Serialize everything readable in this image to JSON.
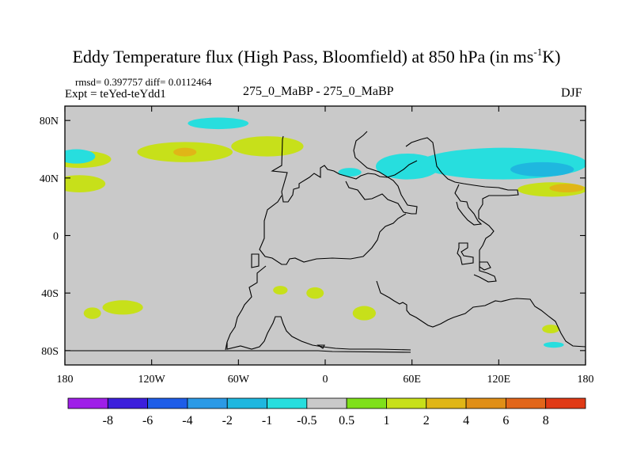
{
  "header": {
    "title_main": "Eddy Temperature flux (High Pass, Bloomfield) at 850 hPa (in ms",
    "title_sup": "-1",
    "title_end": "K)",
    "stats": "rmsd= 0.397757 diff= 0.0112464",
    "expt": "Expt = teYed-teYdd1",
    "center": "275_0_MaBP - 275_0_MaBP",
    "season": "DJF"
  },
  "chart_data": {
    "type": "contour-map",
    "title": "Eddy Temperature flux (High Pass, Bloomfield) at 850 hPa (in ms-1K)",
    "projection": "cylindrical-equidistant",
    "x_range": [
      -180,
      180
    ],
    "y_range": [
      -90,
      90
    ],
    "x_ticks": [
      {
        "value": -180,
        "label": "180"
      },
      {
        "value": -120,
        "label": "120W"
      },
      {
        "value": -60,
        "label": "60W"
      },
      {
        "value": 0,
        "label": "0"
      },
      {
        "value": 60,
        "label": "60E"
      },
      {
        "value": 120,
        "label": "120E"
      },
      {
        "value": 180,
        "label": "180"
      }
    ],
    "y_ticks": [
      {
        "value": 80,
        "label": "80N"
      },
      {
        "value": 40,
        "label": "40N"
      },
      {
        "value": 0,
        "label": "0"
      },
      {
        "value": -40,
        "label": "40S"
      },
      {
        "value": -80,
        "label": "80S"
      }
    ],
    "colorbar": {
      "colors": [
        "#9f1fe8",
        "#3c1fdc",
        "#1e5de8",
        "#2b9ae6",
        "#1fb7df",
        "#27dede",
        "#c9c9c9",
        "#7fe01a",
        "#c7e01a",
        "#e0b617",
        "#e08f17",
        "#e2661a",
        "#e03a16"
      ],
      "labels": [
        "-8",
        "-6",
        "-4",
        "-2",
        "-1",
        "-0.5",
        "0.5",
        "1",
        "2",
        "4",
        "6",
        "8"
      ]
    },
    "features": [
      {
        "level": "1",
        "lon": -170,
        "lat": 53,
        "dlon": 22,
        "dlat": 6
      },
      {
        "level": "1",
        "lon": -97,
        "lat": 58,
        "dlon": 33,
        "dlat": 7
      },
      {
        "level": "1",
        "lon": -40,
        "lat": 62,
        "dlon": 25,
        "dlat": 7
      },
      {
        "level": "1",
        "lon": -170,
        "lat": 36,
        "dlon": 18,
        "dlat": 6
      },
      {
        "level": "1",
        "lon": 157,
        "lat": 32,
        "dlon": 24,
        "dlat": 5
      },
      {
        "level": "1",
        "lon": -140,
        "lat": -50,
        "dlon": 14,
        "dlat": 5
      },
      {
        "level": "1",
        "lon": -161,
        "lat": -54,
        "dlon": 6,
        "dlat": 4
      },
      {
        "level": "1",
        "lon": 27,
        "lat": -54,
        "dlon": 8,
        "dlat": 5
      },
      {
        "level": "1",
        "lon": -31,
        "lat": -38,
        "dlon": 5,
        "dlat": 3
      },
      {
        "level": "1",
        "lon": -7,
        "lat": -40,
        "dlon": 6,
        "dlat": 4
      },
      {
        "level": "1",
        "lon": 156,
        "lat": -65,
        "dlon": 6,
        "dlat": 3
      },
      {
        "level": "2",
        "lon": -97,
        "lat": 58,
        "dlon": 8,
        "dlat": 3
      },
      {
        "level": "2",
        "lon": 167,
        "lat": 33,
        "dlon": 12,
        "dlat": 3
      },
      {
        "level": "-0.5",
        "lon": -74,
        "lat": 78,
        "dlon": 21,
        "dlat": 4
      },
      {
        "level": "-0.5",
        "lon": -172,
        "lat": 55,
        "dlon": 13,
        "dlat": 5
      },
      {
        "level": "-0.5",
        "lon": 57,
        "lat": 48,
        "dlon": 22,
        "dlat": 9
      },
      {
        "level": "-0.5",
        "lon": 123,
        "lat": 50,
        "dlon": 58,
        "dlat": 11
      },
      {
        "level": "-0.5",
        "lon": 158,
        "lat": -76,
        "dlon": 7,
        "dlat": 2
      },
      {
        "level": "-0.5",
        "lon": 17,
        "lat": 44,
        "dlon": 8,
        "dlat": 3
      },
      {
        "level": "-1",
        "lon": 150,
        "lat": 46,
        "dlon": 22,
        "dlat": 5
      }
    ]
  }
}
